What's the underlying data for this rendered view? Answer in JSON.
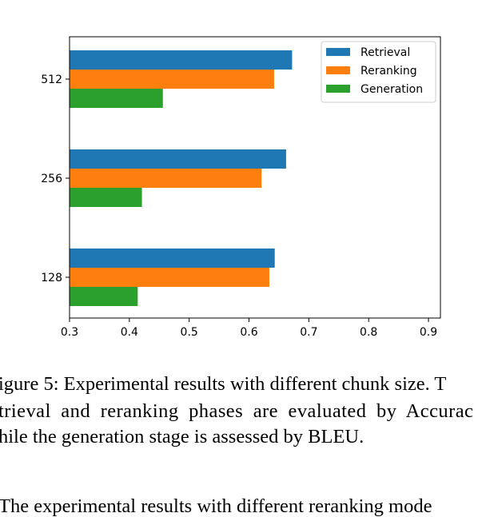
{
  "chart_data": {
    "type": "bar",
    "orientation": "horizontal",
    "categories": [
      "128",
      "256",
      "512"
    ],
    "series": [
      {
        "name": "Retrieval",
        "color": "#1f77b4",
        "values": [
          0.643,
          0.662,
          0.672
        ]
      },
      {
        "name": "Reranking",
        "color": "#ff7f0e",
        "values": [
          0.634,
          0.621,
          0.642
        ]
      },
      {
        "name": "Generation",
        "color": "#2ca02c",
        "values": [
          0.414,
          0.421,
          0.456
        ]
      }
    ],
    "xlim": [
      0.3,
      0.92
    ],
    "xticks": [
      "0.3",
      "0.4",
      "0.5",
      "0.6",
      "0.7",
      "0.8",
      "0.9"
    ],
    "title": "",
    "xlabel": "",
    "ylabel": "",
    "grid": false,
    "legend_position": "top-right"
  },
  "caption": {
    "line1": "igure 5: Experimental results with different chunk size. T",
    "line2": "trieval and reranking phases are evaluated by Accurac",
    "line3": "hile the generation stage is assessed by BLEU."
  },
  "body_text": {
    "line1": "The experimental results with different reranking mode"
  }
}
